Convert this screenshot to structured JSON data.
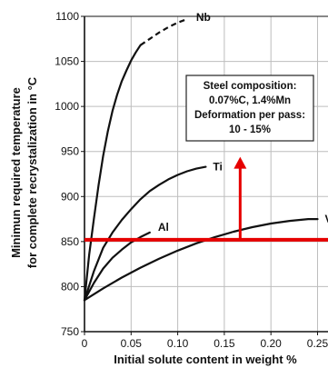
{
  "chart_data": {
    "type": "line",
    "title": "",
    "xlabel": "Initial solute content in weight %",
    "ylabel_lines": [
      "Minimun required temperature",
      "for complete recrystalization in °C"
    ],
    "xlim": [
      0,
      0.27
    ],
    "ylim": [
      750,
      1100
    ],
    "xticks": [
      0,
      0.05,
      0.1,
      0.15,
      0.2,
      0.25
    ],
    "xtick_labels": [
      "0",
      "0.05",
      "0.10",
      "0.15",
      "0.20",
      "0.25"
    ],
    "yticks": [
      750,
      800,
      850,
      900,
      950,
      1000,
      1050,
      1100
    ],
    "ytick_labels": [
      "750",
      "800",
      "850",
      "900",
      "950",
      "1000",
      "1050",
      "1100"
    ],
    "grid": true,
    "series": [
      {
        "name": "Nb",
        "x": [
          0,
          0.005,
          0.01,
          0.015,
          0.02,
          0.025,
          0.03,
          0.035,
          0.04,
          0.045,
          0.05,
          0.055,
          0.06
        ],
        "y": [
          785,
          835,
          875,
          912,
          945,
          972,
          995,
          1013,
          1028,
          1040,
          1051,
          1060,
          1068
        ],
        "dashed_x": [
          0.06,
          0.07,
          0.08,
          0.09,
          0.1,
          0.11
        ],
        "dashed_y": [
          1068,
          1075,
          1082,
          1088,
          1093,
          1097
        ]
      },
      {
        "name": "Ti",
        "x": [
          0,
          0.01,
          0.02,
          0.03,
          0.04,
          0.05,
          0.06,
          0.07,
          0.08,
          0.09,
          0.1,
          0.11,
          0.12,
          0.13
        ],
        "y": [
          785,
          817,
          843,
          860,
          874,
          886,
          897,
          906,
          913,
          919,
          924,
          928,
          931,
          933
        ],
        "dashed_x": [],
        "dashed_y": []
      },
      {
        "name": "Al",
        "x": [
          0,
          0.01,
          0.02,
          0.03,
          0.04,
          0.05,
          0.06,
          0.07
        ],
        "y": [
          785,
          804,
          820,
          832,
          841,
          849,
          855,
          860
        ],
        "dashed_x": [],
        "dashed_y": []
      },
      {
        "name": "V",
        "x": [
          0,
          0.02,
          0.04,
          0.06,
          0.08,
          0.1,
          0.12,
          0.14,
          0.16,
          0.18,
          0.2,
          0.22,
          0.24,
          0.25
        ],
        "y": [
          785,
          798,
          810,
          821,
          831,
          840,
          848,
          855,
          861,
          866,
          870,
          873,
          875,
          875
        ],
        "dashed_x": [],
        "dashed_y": []
      }
    ],
    "annotation_box": {
      "lines": [
        "Steel composition:",
        "0.07%C, 1.4%Mn",
        "Deformation per pass:",
        "10 - 15%"
      ]
    },
    "highlight": {
      "color": "#e60000",
      "horizontal_line_y": 852,
      "arrow_x": 0.167,
      "arrow_from_y": 852,
      "arrow_to_y": 940
    }
  }
}
